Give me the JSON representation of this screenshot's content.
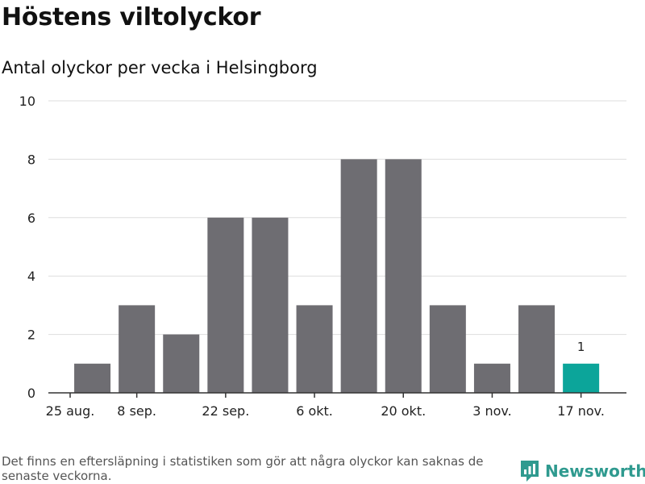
{
  "title": "Höstens viltolyckor",
  "subtitle": "Antal olyckor per vecka i Helsingborg",
  "footnote": "Det finns en eftersläpning i statistiken som gör att några olyckor kan saknas de senaste veckorna.",
  "brand": {
    "name": "Newsworthy",
    "icon": "newsworthy-logo-icon",
    "color": "#2f9a8f"
  },
  "colors": {
    "bar": "#6e6d72",
    "highlight": "#0ca59a",
    "grid": "#dddddd"
  },
  "chart_data": {
    "type": "bar",
    "title": "Höstens viltolyckor",
    "subtitle": "Antal olyckor per vecka i Helsingborg",
    "xlabel": "",
    "ylabel": "",
    "ylim": [
      0,
      10
    ],
    "yticks": [
      0,
      2,
      4,
      6,
      8,
      10
    ],
    "week_start_ticks": [
      "25 aug.",
      "8 sep.",
      "22 sep.",
      "6 okt.",
      "20 okt.",
      "3 nov.",
      "17 nov."
    ],
    "tick_week_index": [
      -0.5,
      1,
      3,
      5,
      7,
      9,
      11
    ],
    "values": [
      1,
      3,
      2,
      6,
      6,
      3,
      8,
      8,
      3,
      1,
      3,
      1
    ],
    "highlight_index": 11,
    "data_labels": [
      {
        "index": 11,
        "text": "1"
      }
    ]
  }
}
